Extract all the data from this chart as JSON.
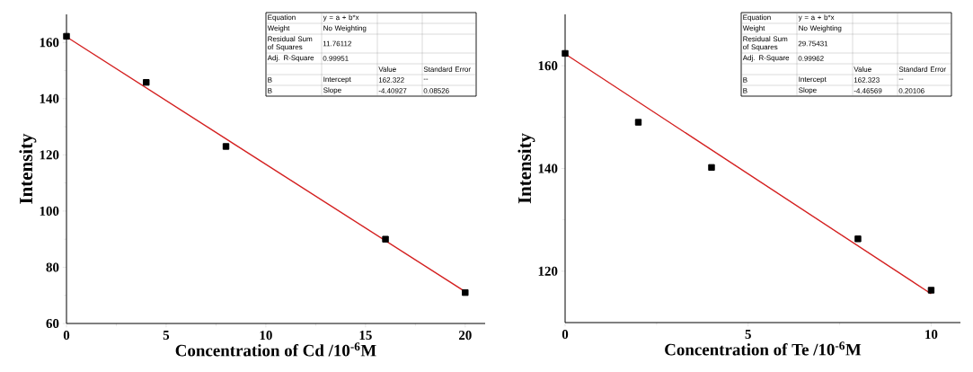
{
  "chart_data": [
    {
      "type": "scatter",
      "xlabel": "Concentration of Cd /10$^{-6}$M",
      "ylabel": "Intensity",
      "xlim": [
        0,
        21
      ],
      "ylim": [
        60,
        170
      ],
      "xticks": [
        0,
        5,
        10,
        15,
        20
      ],
      "yticks": [
        60,
        80,
        100,
        120,
        140,
        160
      ],
      "series": [
        {
          "type": "scatter",
          "marker": "square",
          "color": "#000000",
          "x": [
            0,
            4,
            8,
            16,
            20
          ],
          "values": [
            162.2,
            145.8,
            123,
            90,
            71
          ]
        },
        {
          "type": "line",
          "marker": "none",
          "color": "#d42020",
          "x": [
            0,
            20
          ],
          "values": [
            162,
            71.3
          ]
        }
      ],
      "annotations": [
        "Equation",
        "y = a + b*x",
        "Weight",
        "No Weighting",
        "Residual Sum of Squares",
        "11.76112",
        "Adj. R-Square",
        "0.99951",
        "Value",
        "Standard Error",
        "B",
        "Intercept",
        "162.322",
        "--",
        "B",
        "Slope",
        "-4.40927",
        "0.08526"
      ]
    },
    {
      "type": "scatter",
      "xlabel": "Concentration of Te /10$^{-6}$M",
      "ylabel": "Intensity",
      "xlim": [
        0,
        10.8
      ],
      "ylim": [
        110,
        170
      ],
      "xticks": [
        0,
        5,
        10
      ],
      "yticks": [
        120,
        140,
        160
      ],
      "series": [
        {
          "type": "scatter",
          "marker": "square",
          "color": "#000000",
          "x": [
            0,
            2,
            4,
            8,
            10
          ],
          "values": [
            162.4,
            149,
            140.2,
            126.3,
            116.3
          ]
        },
        {
          "type": "line",
          "marker": "none",
          "color": "#d42020",
          "x": [
            0,
            10
          ],
          "values": [
            162.3,
            115.6
          ]
        }
      ],
      "annotations": [
        "Equation",
        "y = a + b*x",
        "Weight",
        "No Weighting",
        "Residual Sum of Squares",
        "29.75431",
        "Adj. R-Square",
        "0.99962",
        "Value",
        "Standard Error",
        "B",
        "Intercept",
        "162.323",
        "--",
        "B",
        "Slope",
        "-4.46569",
        "0.20106"
      ]
    }
  ]
}
